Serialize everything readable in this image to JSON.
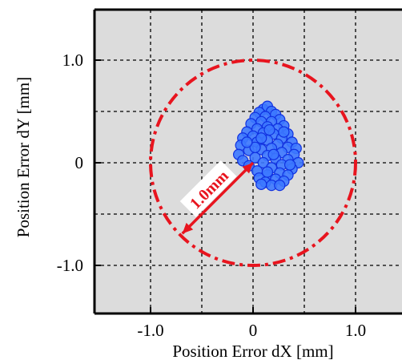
{
  "chart_data": {
    "type": "scatter",
    "title": "",
    "xlabel": "Position Error dX  [mm]",
    "ylabel": "Position Error dY  [mm]",
    "xlim": [
      -1.5,
      1.5
    ],
    "ylim": [
      -1.5,
      1.5
    ],
    "x_ticks": [
      -1.0,
      0,
      1.0
    ],
    "y_ticks": [
      -1.0,
      0,
      1.0
    ],
    "x_tick_labels": [
      "-1.0",
      "0",
      "1.0"
    ],
    "y_tick_labels": [
      "-1.0",
      "0",
      "1.0"
    ],
    "grid": true,
    "grid_step": 0.5,
    "background": "#dcdcdc",
    "marker_color": "#3c78ff",
    "marker_edge": "#1030e0",
    "circle": {
      "center": [
        0,
        0
      ],
      "radius": 1.0,
      "color": "#e8141e",
      "style": "dash-dot"
    },
    "annotation": {
      "text": "1.0mm",
      "from": [
        0,
        0
      ],
      "to": [
        -0.69,
        -0.69
      ],
      "color": "#e8141e"
    },
    "series": [
      {
        "points": [
          [
            0.1,
            0.52
          ],
          [
            0.14,
            0.55
          ],
          [
            0.18,
            0.5
          ],
          [
            0.06,
            0.49
          ],
          [
            0.22,
            0.47
          ],
          [
            0.02,
            0.44
          ],
          [
            0.12,
            0.45
          ],
          [
            0.26,
            0.42
          ],
          [
            0.08,
            0.4
          ],
          [
            0.18,
            0.4
          ],
          [
            -0.02,
            0.38
          ],
          [
            0.3,
            0.36
          ],
          [
            0.14,
            0.35
          ],
          [
            0.04,
            0.33
          ],
          [
            0.24,
            0.33
          ],
          [
            -0.06,
            0.3
          ],
          [
            0.34,
            0.28
          ],
          [
            0.1,
            0.29
          ],
          [
            0.2,
            0.28
          ],
          [
            0.0,
            0.26
          ],
          [
            0.28,
            0.24
          ],
          [
            -0.1,
            0.24
          ],
          [
            0.38,
            0.2
          ],
          [
            0.14,
            0.22
          ],
          [
            0.04,
            0.2
          ],
          [
            0.24,
            0.18
          ],
          [
            -0.12,
            0.17
          ],
          [
            0.34,
            0.15
          ],
          [
            0.42,
            0.14
          ],
          [
            0.18,
            0.14
          ],
          [
            0.08,
            0.13
          ],
          [
            -0.04,
            0.12
          ],
          [
            0.28,
            0.1
          ],
          [
            0.4,
            0.08
          ],
          [
            -0.14,
            0.08
          ],
          [
            0.14,
            0.07
          ],
          [
            0.02,
            0.05
          ],
          [
            0.22,
            0.04
          ],
          [
            0.34,
            0.03
          ],
          [
            -0.1,
            0.02
          ],
          [
            0.44,
            0.0
          ],
          [
            0.1,
            0.0
          ],
          [
            0.28,
            -0.02
          ],
          [
            -0.04,
            -0.03
          ],
          [
            0.18,
            -0.05
          ],
          [
            0.38,
            -0.06
          ],
          [
            0.04,
            -0.08
          ],
          [
            0.26,
            -0.1
          ],
          [
            0.14,
            -0.12
          ],
          [
            0.34,
            -0.12
          ],
          [
            0.06,
            -0.15
          ],
          [
            0.22,
            -0.16
          ],
          [
            0.3,
            -0.18
          ],
          [
            0.12,
            -0.19
          ],
          [
            0.18,
            -0.22
          ],
          [
            0.26,
            -0.22
          ],
          [
            0.08,
            -0.21
          ],
          [
            0.14,
            -0.09
          ],
          [
            0.02,
            0.15
          ],
          [
            0.3,
            0.3
          ],
          [
            0.2,
            0.08
          ],
          [
            0.08,
            0.24
          ],
          [
            0.36,
            -0.02
          ],
          [
            -0.06,
            0.2
          ],
          [
            0.16,
            0.32
          ]
        ]
      }
    ]
  }
}
